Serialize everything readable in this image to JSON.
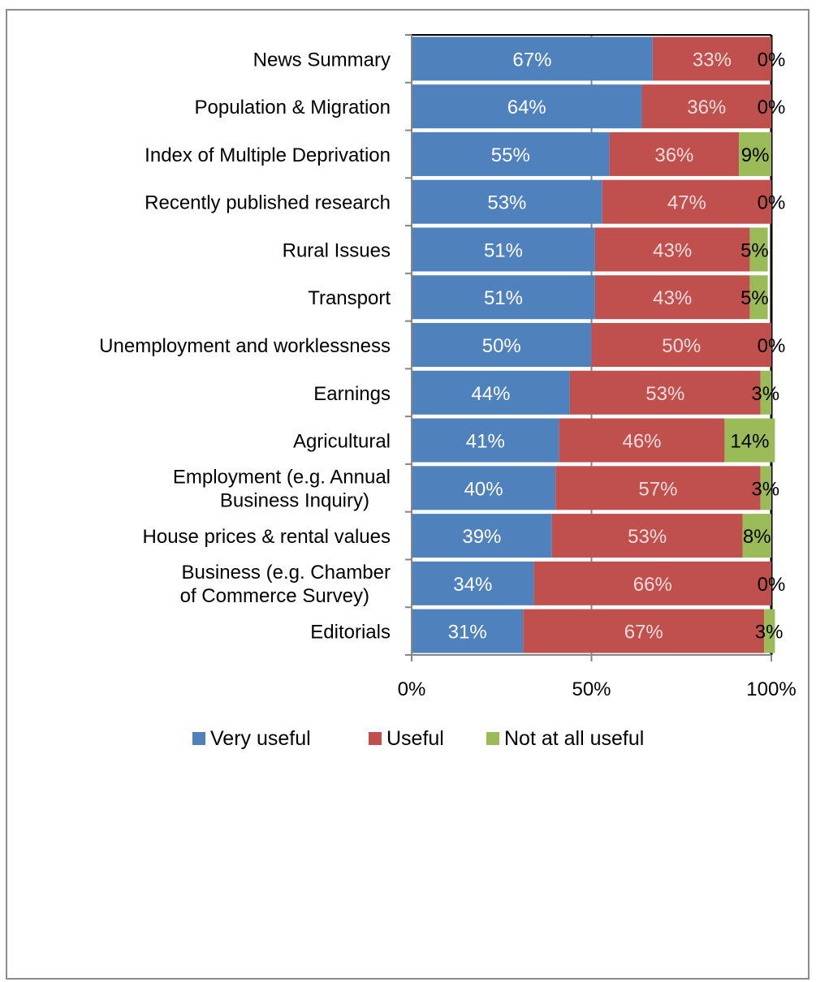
{
  "chart_data": {
    "type": "bar",
    "orientation": "horizontal",
    "stacked": "percent",
    "categories": [
      "News Summary",
      "Population & Migration",
      "Index of Multiple Deprivation",
      "Recently published research",
      "Rural Issues",
      "Transport",
      "Unemployment and worklessness",
      "Earnings",
      "Agricultural",
      "Employment (e.g. Annual Business Inquiry)",
      "House prices & rental values",
      "Business (e.g. Chamber of Commerce Survey)",
      "Editorials"
    ],
    "series": [
      {
        "name": "Very useful",
        "color": "#4f81bd",
        "values": [
          67,
          64,
          55,
          53,
          51,
          51,
          50,
          44,
          41,
          40,
          39,
          34,
          31
        ],
        "labels": [
          "67%",
          "64%",
          "55%",
          "53%",
          "51%",
          "51%",
          "50%",
          "44%",
          "41%",
          "40%",
          "39%",
          "34%",
          "31%"
        ]
      },
      {
        "name": "Useful",
        "color": "#c0504d",
        "values": [
          33,
          36,
          36,
          47,
          43,
          43,
          50,
          53,
          46,
          57,
          53,
          66,
          67
        ],
        "labels": [
          "33%",
          "36%",
          "36%",
          "47%",
          "43%",
          "43%",
          "50%",
          "53%",
          "46%",
          "57%",
          "53%",
          "66%",
          "67%"
        ]
      },
      {
        "name": "Not at all useful",
        "color": "#9bbb59",
        "values": [
          0,
          0,
          9,
          0,
          5,
          5,
          0,
          3,
          14,
          3,
          8,
          0,
          3
        ],
        "labels": [
          "0%",
          "0%",
          "9%",
          "0%",
          "5%",
          "5%",
          "0%",
          "3%",
          "14%",
          "3%",
          "8%",
          "0%",
          "3%"
        ]
      }
    ],
    "xlim": [
      0,
      100
    ],
    "x_ticks": [
      0,
      50,
      100
    ],
    "x_tick_labels": [
      "0%",
      "50%",
      "100%"
    ],
    "title": "",
    "xlabel": "",
    "ylabel": "",
    "grid": "vertical",
    "legend_position": "bottom"
  }
}
